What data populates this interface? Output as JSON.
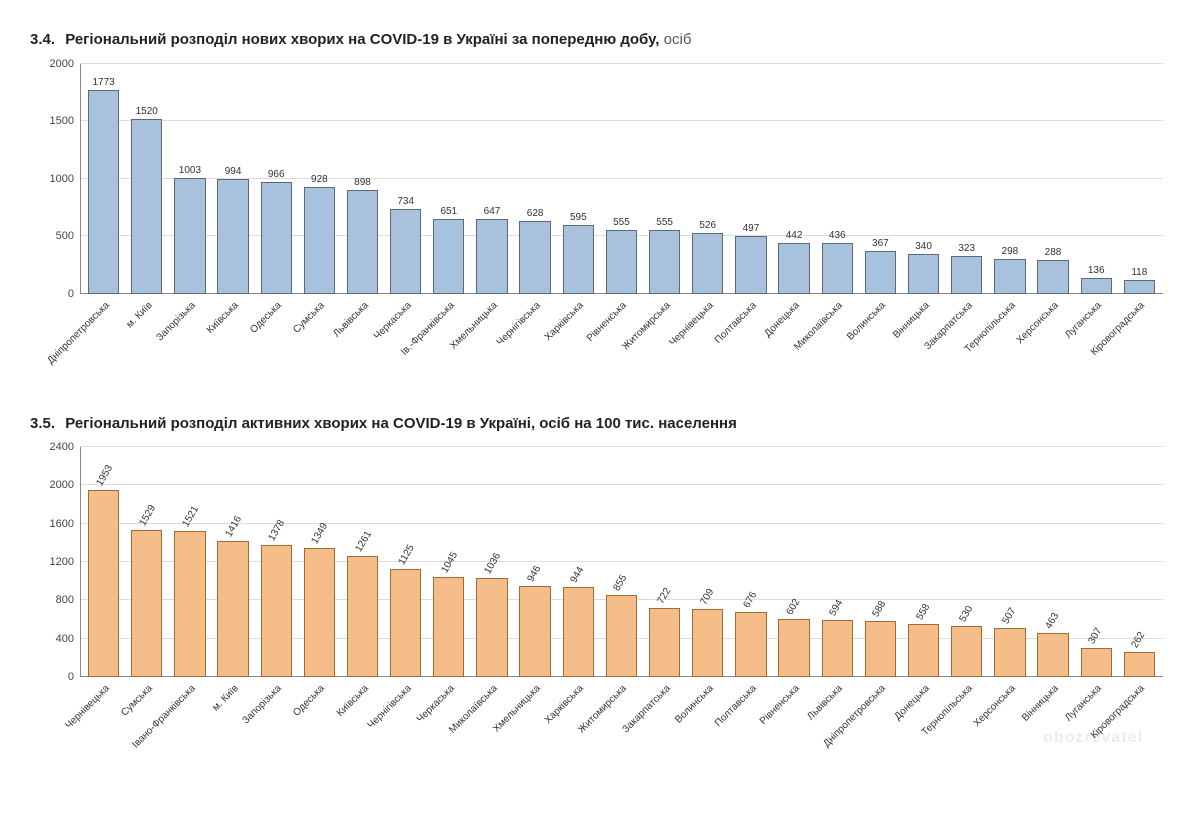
{
  "section1": {
    "number": "3.4.",
    "title_bold": "Регіональний розподіл нових хворих на COVID-19 в Україні за попередню добу,",
    "title_unit": "осіб"
  },
  "section2": {
    "number": "3.5.",
    "title_bold": "Регіональний розподіл активних хворих на COVID-19 в Україні, осіб на 100 тис. населення",
    "title_unit": ""
  },
  "chart1": {
    "type": "bar",
    "bar_fill": "#a8c1dc",
    "bar_border": "#5a6a7a",
    "grid_color": "#dcdcdc",
    "background_color": "#ffffff",
    "ylim": [
      0,
      2000
    ],
    "ytick_step": 500,
    "yticks": [
      0,
      500,
      1000,
      1500,
      2000
    ],
    "value_label_rotation": 0,
    "value_fontsize": 10,
    "xlabel_fontsize": 10,
    "xlabel_rotation": -45,
    "categories": [
      "Дніпропетровська",
      "м. Київ",
      "Запорізька",
      "Київська",
      "Одеська",
      "Сумська",
      "Львівська",
      "Черкаська",
      "Ів.-Франківська",
      "Хмельницька",
      "Чернігівська",
      "Харківська",
      "Рівненська",
      "Житомирська",
      "Чернівецька",
      "Полтавська",
      "Донецька",
      "Миколаївська",
      "Волинська",
      "Вінницька",
      "Закарпатська",
      "Тернопільська",
      "Херсонська",
      "Луганська",
      "Кіровоградська"
    ],
    "values": [
      1773,
      1520,
      1003,
      994,
      966,
      928,
      898,
      734,
      651,
      647,
      628,
      595,
      555,
      555,
      526,
      497,
      442,
      436,
      367,
      340,
      323,
      298,
      288,
      136,
      118
    ]
  },
  "chart2": {
    "type": "bar",
    "bar_fill": "#f5bd87",
    "bar_border": "#a06a3a",
    "grid_color": "#dcdcdc",
    "background_color": "#ffffff",
    "ylim": [
      0,
      2400
    ],
    "ytick_step": 400,
    "yticks": [
      0,
      400,
      800,
      1200,
      1600,
      2000,
      2400
    ],
    "value_label_rotation": -60,
    "value_fontsize": 10,
    "xlabel_fontsize": 10,
    "xlabel_rotation": -45,
    "categories": [
      "Чернівецька",
      "Сумська",
      "Івано-Франківська",
      "м. Київ",
      "Запорізька",
      "Одеська",
      "Київська",
      "Чернігівська",
      "Черкаська",
      "Миколаївська",
      "Хмельницька",
      "Харківська",
      "Житомирська",
      "Закарпатська",
      "Волинська",
      "Полтавська",
      "Рівненська",
      "Львівська",
      "Дніпропетровська",
      "Донецька",
      "Тернопільська",
      "Херсонська",
      "Вінницька",
      "Луганська",
      "Кіровоградська"
    ],
    "values": [
      1953,
      1529,
      1521,
      1416,
      1378,
      1349,
      1261,
      1125,
      1045,
      1036,
      946,
      944,
      855,
      722,
      709,
      676,
      602,
      594,
      588,
      558,
      530,
      507,
      463,
      307,
      262
    ]
  },
  "watermark": "obozrevatel"
}
